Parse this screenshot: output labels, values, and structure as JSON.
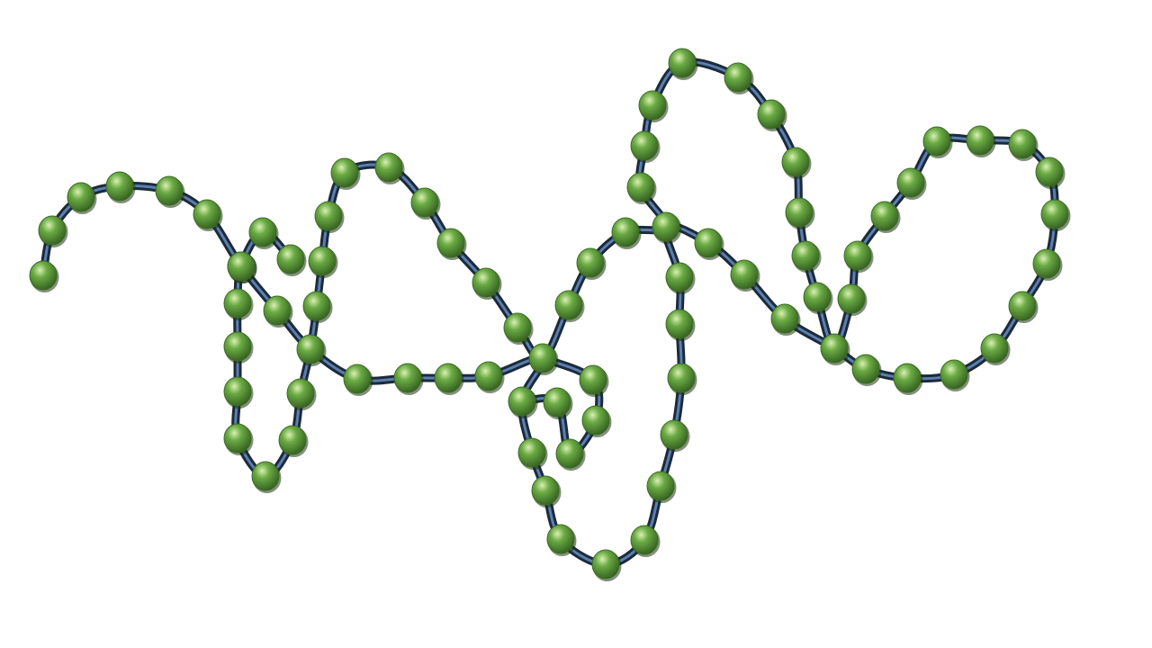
{
  "scene": {
    "subject": "bead-chain-polymer",
    "background_color": "#ffffff",
    "bead_color": "#6aaa44",
    "bead_highlight_color": "#d9f0b0",
    "bead_shadow_color": "#2f5a1c",
    "tube_color": "#1c2a3a",
    "tube_highlight_color": "#5b7fb0"
  }
}
